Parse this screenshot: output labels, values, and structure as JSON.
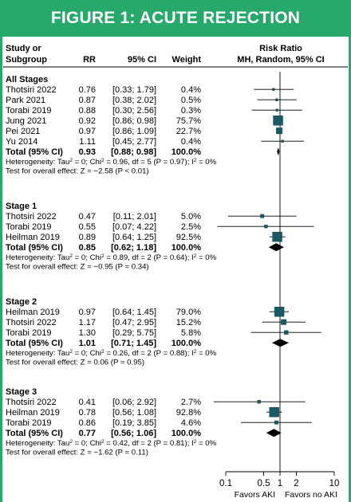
{
  "banner": {
    "title": "FIGURE 1: ACUTE REJECTION"
  },
  "chart_data": {
    "type": "forest",
    "headers": {
      "study_line1": "Study or",
      "study_line2": "Subgroup",
      "rr": "RR",
      "ci": "95% CI",
      "weight": "Weight",
      "plot_line1": "Risk Ratio",
      "plot_line2": "MH, Random, 95% CI"
    },
    "x_axis": {
      "scale": "log",
      "range": [
        0.1,
        10
      ],
      "ticks": [
        0.1,
        0.5,
        1,
        2,
        10
      ],
      "tick_labels": [
        "0.1",
        "0.5",
        "1",
        "2",
        "10"
      ],
      "reference": 1,
      "label_left": "Favors AKI",
      "label_right": "Favors no AKI"
    },
    "colors": {
      "box": "#1a5a66",
      "banner": "#27a96c"
    },
    "groups": [
      {
        "name": "All Stages",
        "studies": [
          {
            "study": "Thotsiri 2022",
            "rr": 0.76,
            "lo": 0.33,
            "hi": 1.79,
            "rr_text": "0.76",
            "ci_text": "[0.33; 1.79]",
            "weight_text": "0.4%",
            "weight": 0.4
          },
          {
            "study": "Park 2021",
            "rr": 0.87,
            "lo": 0.38,
            "hi": 2.02,
            "rr_text": "0.87",
            "ci_text": "[0.38; 2.02]",
            "weight_text": "0.5%",
            "weight": 0.5
          },
          {
            "study": "Torabi 2019",
            "rr": 0.88,
            "lo": 0.3,
            "hi": 2.56,
            "rr_text": "0.88",
            "ci_text": "[0.30; 2.56]",
            "weight_text": "0.3%",
            "weight": 0.3
          },
          {
            "study": "Jung 2021",
            "rr": 0.92,
            "lo": 0.86,
            "hi": 0.98,
            "rr_text": "0.92",
            "ci_text": "[0.86; 0.98]",
            "weight_text": "75.7%",
            "weight": 75.7
          },
          {
            "study": "Pei 2021",
            "rr": 0.97,
            "lo": 0.86,
            "hi": 1.09,
            "rr_text": "0.97",
            "ci_text": "[0.86; 1.09]",
            "weight_text": "22.7%",
            "weight": 22.7
          },
          {
            "study": "Yu 2014",
            "rr": 1.11,
            "lo": 0.45,
            "hi": 2.77,
            "rr_text": "1.11",
            "ci_text": "[0.45; 2.77]",
            "weight_text": "0.4%",
            "weight": 0.4
          }
        ],
        "total": {
          "label": "Total (95% CI)",
          "rr": 0.93,
          "lo": 0.88,
          "hi": 0.98,
          "rr_text": "0.93",
          "ci_text": "[0.88; 0.98]",
          "weight_text": "100.0%"
        },
        "het": {
          "tau2": "0",
          "chi2": "0.96",
          "df": "5",
          "p": "0.97",
          "i2": "0%"
        },
        "overall": "Test for overall effect: Z = −2.58 (P < 0.01)"
      },
      {
        "name": "Stage 1",
        "studies": [
          {
            "study": "Thotsiri 2022",
            "rr": 0.47,
            "lo": 0.11,
            "hi": 2.01,
            "rr_text": "0.47",
            "ci_text": "[0.11; 2.01]",
            "weight_text": "5.0%",
            "weight": 5.0
          },
          {
            "study": "Torabi 2019",
            "rr": 0.55,
            "lo": 0.07,
            "hi": 4.22,
            "rr_text": "0.55",
            "ci_text": "[0.07; 4.22]",
            "weight_text": "2.5%",
            "weight": 2.5
          },
          {
            "study": "Heilman 2019",
            "rr": 0.89,
            "lo": 0.64,
            "hi": 1.25,
            "rr_text": "0.89",
            "ci_text": "[0.64; 1.25]",
            "weight_text": "92.5%",
            "weight": 92.5
          }
        ],
        "total": {
          "label": "Total (95% CI)",
          "rr": 0.85,
          "lo": 0.62,
          "hi": 1.18,
          "rr_text": "0.85",
          "ci_text": "[0.62; 1.18]",
          "weight_text": "100.0%"
        },
        "het": {
          "tau2": "0",
          "chi2": "0.89",
          "df": "2",
          "p": "0.64",
          "i2": "0%"
        },
        "overall": "Test for overall effect: Z = −0.95 (P = 0.34)"
      },
      {
        "name": "Stage 2",
        "studies": [
          {
            "study": "Heilman 2019",
            "rr": 0.97,
            "lo": 0.64,
            "hi": 1.45,
            "rr_text": "0.97",
            "ci_text": "[0.64; 1.45]",
            "weight_text": "79.0%",
            "weight": 79.0
          },
          {
            "study": "Thotsiri 2022",
            "rr": 1.17,
            "lo": 0.47,
            "hi": 2.95,
            "rr_text": "1.17",
            "ci_text": "[0.47; 2.95]",
            "weight_text": "15.2%",
            "weight": 15.2
          },
          {
            "study": "Torabi 2019",
            "rr": 1.3,
            "lo": 0.29,
            "hi": 5.75,
            "rr_text": "1.30",
            "ci_text": "[0.29; 5.75]",
            "weight_text": "5.8%",
            "weight": 5.8
          }
        ],
        "total": {
          "label": "Total (95% CI)",
          "rr": 1.01,
          "lo": 0.71,
          "hi": 1.45,
          "rr_text": "1.01",
          "ci_text": "[0.71; 1.45]",
          "weight_text": "100.0%"
        },
        "het": {
          "tau2": "0",
          "chi2": "0.26",
          "df": "2",
          "p": "0.88",
          "i2": "0%"
        },
        "overall": "Test for overall effect: Z = 0.06 (P = 0.95)"
      },
      {
        "name": "Stage 3",
        "studies": [
          {
            "study": "Thotsiri 2022",
            "rr": 0.41,
            "lo": 0.06,
            "hi": 2.92,
            "rr_text": "0.41",
            "ci_text": "[0.06; 2.92]",
            "weight_text": "2.7%",
            "weight": 2.7
          },
          {
            "study": "Heilman 2019",
            "rr": 0.78,
            "lo": 0.56,
            "hi": 1.08,
            "rr_text": "0.78",
            "ci_text": "[0.56; 1.08]",
            "weight_text": "92.8%",
            "weight": 92.8
          },
          {
            "study": "Torabi 2019",
            "rr": 0.86,
            "lo": 0.19,
            "hi": 3.85,
            "rr_text": "0.86",
            "ci_text": "[0.19; 3.85]",
            "weight_text": "4.6%",
            "weight": 4.6
          }
        ],
        "total": {
          "label": "Total (95% CI)",
          "rr": 0.77,
          "lo": 0.56,
          "hi": 1.06,
          "rr_text": "0.77",
          "ci_text": "[0.56; 1.06]",
          "weight_text": "100.0%"
        },
        "het": {
          "tau2": "0",
          "chi2": "0.42",
          "df": "2",
          "p": "0.81",
          "i2": "0%"
        },
        "overall": "Test for overall effect: Z = −1.62 (P = 0.11)"
      }
    ]
  }
}
